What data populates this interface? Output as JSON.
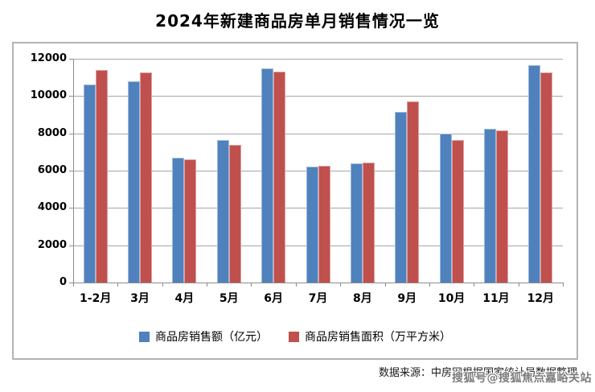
{
  "page": {
    "title": "2024年新建商品房单月销售情况一览",
    "source_text": "数据来源：中房网根据国家统计局数据整理",
    "watermark": "搜狐号@搜狐焦点嘉峪关站"
  },
  "colors": {
    "sales_amount_blue": "#4F81BD",
    "sales_area_red": "#C0504D",
    "gridline": "#a6a6a6",
    "axis": "#8c8c8c",
    "chart_border": "#b3b3b3",
    "text": "#000000"
  },
  "chart_data": {
    "type": "bar",
    "title": "2024年新建商品房单月销售情况一览",
    "categories": [
      "1-2月",
      "3月",
      "4月",
      "5月",
      "6月",
      "7月",
      "8月",
      "9月",
      "10月",
      "11月",
      "12月"
    ],
    "series": [
      {
        "name": "商品房销售额（亿元）",
        "key": "sales-amount",
        "color": "#4F81BD",
        "values": [
          10600,
          10800,
          6700,
          7650,
          11500,
          6200,
          6400,
          9150,
          8000,
          8250,
          11650
        ]
      },
      {
        "name": "商品房销售面积（万平方米）",
        "key": "sales-area",
        "color": "#C0504D",
        "values": [
          11400,
          11280,
          6600,
          7400,
          11300,
          6250,
          6450,
          9700,
          7650,
          8150,
          11250
        ]
      }
    ],
    "xlabel": "",
    "ylabel": "",
    "ylim": [
      0,
      12000
    ],
    "ytick_step": 2000,
    "grid": true,
    "legend_position": "bottom"
  }
}
